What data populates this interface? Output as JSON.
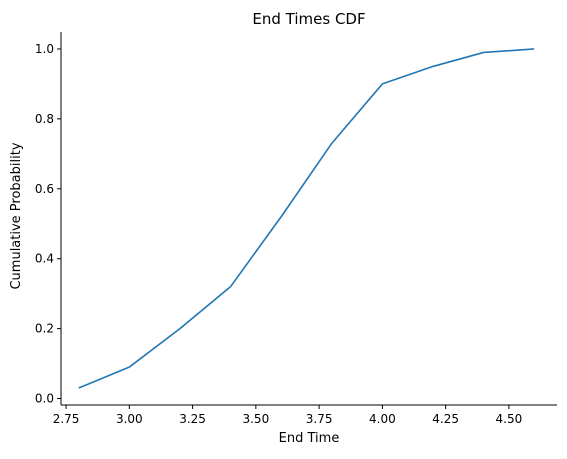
{
  "chart_data": {
    "type": "line",
    "title": "End Times CDF",
    "xlabel": "End Time",
    "ylabel": "Cumulative Probability",
    "xlim": [
      2.73,
      4.69
    ],
    "ylim": [
      -0.0185,
      1.0485
    ],
    "xticks": [
      2.75,
      3.0,
      3.25,
      3.5,
      3.75,
      4.0,
      4.25,
      4.5
    ],
    "xtick_labels": [
      "2.75",
      "3.00",
      "3.25",
      "3.50",
      "3.75",
      "4.00",
      "4.25",
      "4.50"
    ],
    "yticks": [
      0.0,
      0.2,
      0.4,
      0.6,
      0.8,
      1.0
    ],
    "ytick_labels": [
      "0.0",
      "0.2",
      "0.4",
      "0.6",
      "0.8",
      "1.0"
    ],
    "grid": false,
    "spines": [
      "left",
      "bottom"
    ],
    "series": [
      {
        "color": "#1f77b4",
        "x": [
          2.8,
          3.0,
          3.2,
          3.4,
          3.6,
          3.8,
          4.0,
          4.2,
          4.4,
          4.6
        ],
        "y": [
          0.03,
          0.09,
          0.2,
          0.32,
          0.52,
          0.73,
          0.9,
          0.95,
          0.99,
          1.0
        ]
      }
    ]
  }
}
